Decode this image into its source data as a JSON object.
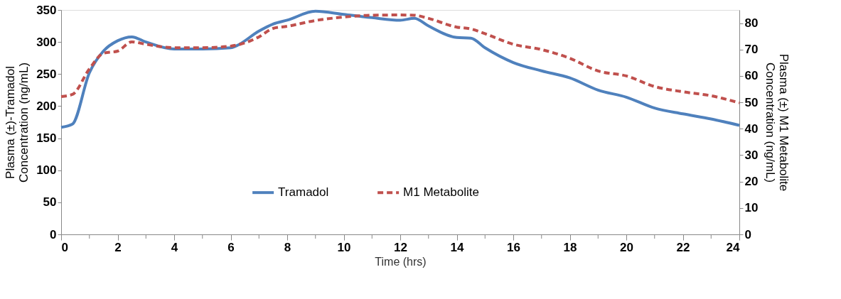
{
  "chart_data": {
    "type": "line",
    "xlabel": "Time (hrs)",
    "ylabel": "Plasma (±)-Tramadol Concentration (ng/mL)",
    "y2label": "Plasma (±) M1 Metabolite Concentration (ng/mL)",
    "xlim": [
      0,
      24
    ],
    "xticks": [
      0,
      {
        "value": 1,
        "label": null
      },
      2,
      {
        "value": 3,
        "label": null
      },
      4,
      {
        "value": 5,
        "label": null
      },
      6,
      {
        "value": 7,
        "label": null
      },
      8,
      {
        "value": 9,
        "label": null
      },
      10,
      {
        "value": 11,
        "label": null
      },
      12,
      {
        "value": 13,
        "label": null
      },
      14,
      {
        "value": 15,
        "label": null
      },
      16,
      {
        "value": 17,
        "label": null
      },
      18,
      {
        "value": 19,
        "label": null
      },
      20,
      {
        "value": 21,
        "label": null
      },
      22,
      {
        "value": 23,
        "label": null
      },
      24
    ],
    "ylim": [
      0,
      350
    ],
    "yticks": [
      0,
      50,
      100,
      150,
      200,
      250,
      300,
      350
    ],
    "y2lim": [
      0,
      85
    ],
    "y2ticks": [
      0,
      10,
      20,
      30,
      40,
      50,
      60,
      70,
      80
    ],
    "grid": false,
    "legend": "bottom",
    "marker": "none",
    "series": [
      {
        "name": "Tramadol",
        "color": "#4f81bd",
        "line_style": "solid",
        "x": [
          0,
          0.4,
          1,
          1.5,
          2,
          2.5,
          3,
          4,
          5,
          6,
          6.2,
          7,
          7.5,
          8,
          9,
          10,
          11,
          12,
          12.5,
          13,
          14,
          14.5,
          15,
          16,
          17,
          18,
          19,
          20,
          21,
          22,
          23,
          24
        ],
        "values": [
          167,
          172,
          252,
          286,
          302,
          308,
          300,
          289,
          289,
          291,
          294,
          317,
          328,
          334,
          348,
          343,
          338,
          334,
          337,
          325,
          307,
          306,
          291,
          268,
          255,
          244,
          225,
          214,
          197,
          188,
          180,
          170
        ]
      },
      {
        "name": "M1 Metabolite",
        "color": "#c0504d",
        "line_style": "dashed",
        "axis": "y2",
        "x": [
          0,
          0.4,
          1,
          1.5,
          2,
          2.5,
          3,
          4,
          5,
          6,
          7,
          7.5,
          8,
          9,
          10,
          11,
          12,
          12.5,
          13,
          14,
          14.5,
          15,
          16,
          17,
          18,
          19,
          20,
          21,
          22,
          23,
          24
        ],
        "values": [
          52.2,
          53,
          62.7,
          68.6,
          69.4,
          72.9,
          72,
          70.7,
          70.7,
          71.3,
          74.8,
          78,
          78.8,
          81,
          82.3,
          83,
          83.1,
          83,
          81.8,
          78.5,
          77.8,
          76,
          72,
          70,
          66.7,
          61.9,
          60,
          56,
          54,
          52.5,
          49.8
        ]
      }
    ]
  }
}
